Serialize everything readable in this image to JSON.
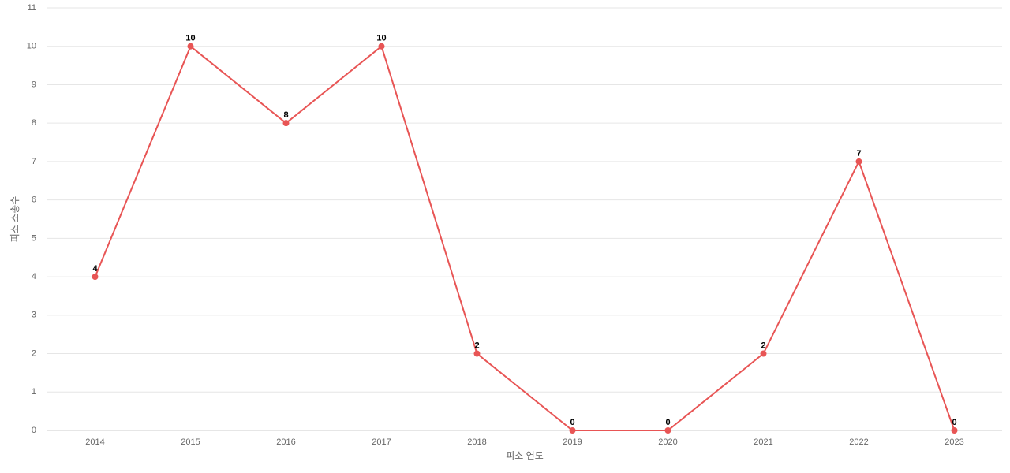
{
  "chart_data": {
    "type": "line",
    "x_label": "피소 연도",
    "y_label": "피소 소송수",
    "categories": [
      "2014",
      "2015",
      "2016",
      "2017",
      "2018",
      "2019",
      "2020",
      "2021",
      "2022",
      "2023"
    ],
    "series": [
      {
        "name": "피소 소송수",
        "color": "#e85555",
        "values": [
          4,
          10,
          8,
          10,
          2,
          0,
          0,
          2,
          7,
          0
        ]
      }
    ],
    "ylim": [
      0,
      11
    ],
    "yticks": [
      0,
      1,
      2,
      3,
      4,
      5,
      6,
      7,
      8,
      9,
      10,
      11
    ],
    "grid": true
  }
}
